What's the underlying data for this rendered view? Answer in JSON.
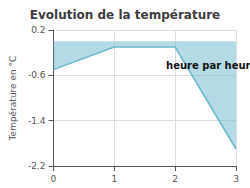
{
  "chart_data": {
    "type": "line",
    "title": "Evolution de la température",
    "y_label": "Température en °C",
    "annotations": [
      {
        "text": "heure par heure",
        "x": 1.85,
        "y": -0.42
      }
    ],
    "x": [
      0,
      1,
      2,
      3
    ],
    "values": [
      -0.5,
      -0.1,
      -0.1,
      -1.9
    ],
    "color": "#6ab8cc",
    "xlim": [
      0,
      3
    ],
    "ylim": [
      -2.2,
      0.2
    ],
    "xticks": [
      0,
      1,
      2,
      3
    ],
    "yticks": [
      0.2,
      -0.6,
      -1.4,
      -2.2
    ],
    "grid": true
  }
}
